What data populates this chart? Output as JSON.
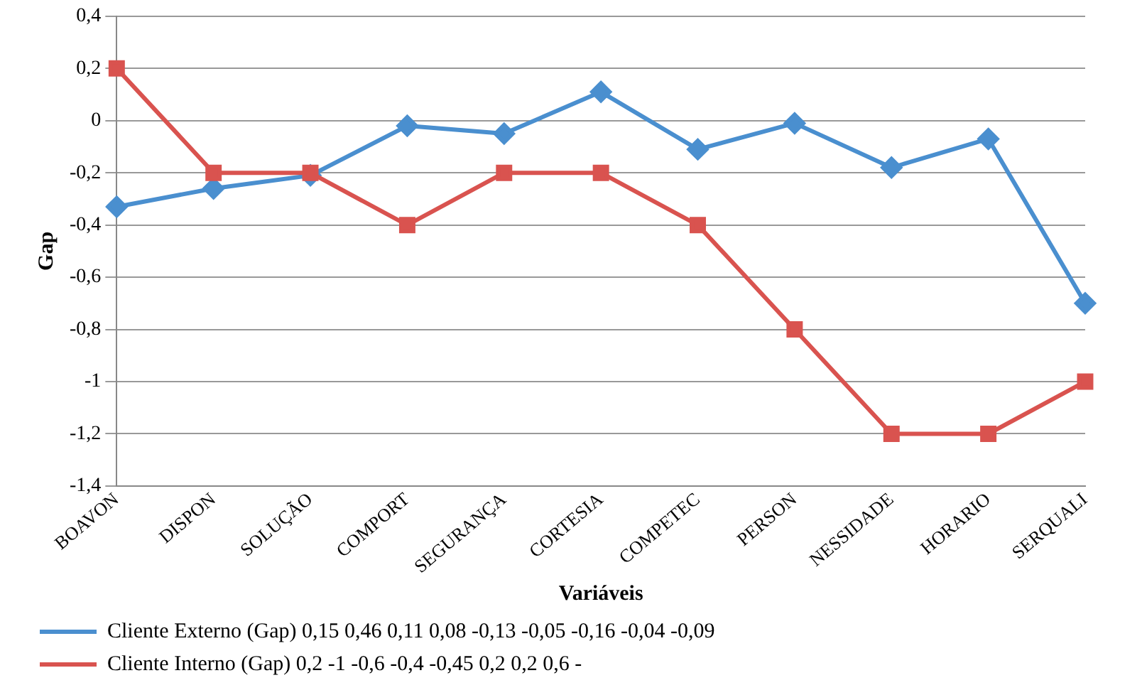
{
  "chart_data": {
    "type": "line",
    "xlabel": "Variáveis",
    "ylabel": "Gap",
    "categories": [
      "BOAVON",
      "DISPON",
      "SOLUÇÃO",
      "COMPORT",
      "SEGURANÇA",
      "CORTESIA",
      "COMPETEC",
      "PERSON",
      "NESSIDADE",
      "HORARIO",
      "SERQUALI"
    ],
    "series": [
      {
        "name": "Cliente Externo (Gap) 0,15 0,46 0,11 0,08 -0,13 -0,05 -0,16 -0,04 -0,09",
        "color": "#4a8fcf",
        "marker": "diamond",
        "values": [
          -0.33,
          -0.26,
          -0.21,
          -0.02,
          -0.05,
          0.11,
          -0.11,
          -0.01,
          -0.18,
          -0.07,
          -0.7
        ]
      },
      {
        "name": "Cliente Interno (Gap) 0,2 -1 -0,6 -0,4 -0,45 0,2 0,2 0,6 -",
        "color": "#d9534f",
        "marker": "square",
        "values": [
          0.2,
          -0.2,
          -0.2,
          -0.4,
          -0.2,
          -0.2,
          -0.4,
          -0.8,
          -1.2,
          -1.2,
          -1.0
        ]
      }
    ],
    "ylim": [
      -1.4,
      0.4
    ],
    "yticks": [
      {
        "value": -1.4,
        "label": "-1,4"
      },
      {
        "value": -1.2,
        "label": "-1,2"
      },
      {
        "value": -1,
        "label": "-1"
      },
      {
        "value": -0.8,
        "label": "-0,8"
      },
      {
        "value": -0.6,
        "label": "-0,6"
      },
      {
        "value": -0.4,
        "label": "-0,4"
      },
      {
        "value": -0.2,
        "label": "-0,2"
      },
      {
        "value": 0,
        "label": "0"
      },
      {
        "value": 0.2,
        "label": "0,2"
      },
      {
        "value": 0.4,
        "label": "0,4"
      }
    ],
    "grid": "y",
    "legend": "bottom"
  }
}
